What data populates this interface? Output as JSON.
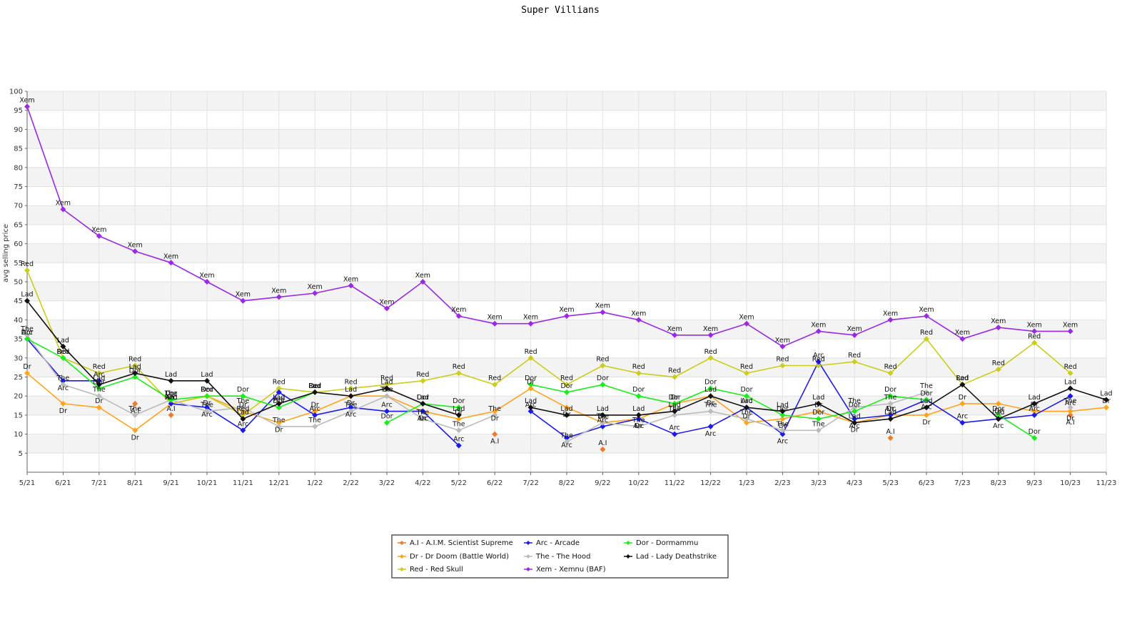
{
  "chart_data": {
    "type": "line",
    "title": "Super Villians",
    "xlabel": "",
    "ylabel": "avg selling price",
    "ylim": [
      0,
      100
    ],
    "yticks": [
      5,
      10,
      15,
      20,
      25,
      30,
      35,
      40,
      45,
      50,
      55,
      60,
      65,
      70,
      75,
      80,
      85,
      90,
      95,
      100
    ],
    "grid": true,
    "legend_position": "bottom-center",
    "x": [
      "5/21",
      "6/21",
      "7/21",
      "8/21",
      "9/21",
      "10/21",
      "11/21",
      "12/21",
      "1/22",
      "2/22",
      "3/22",
      "4/22",
      "5/22",
      "6/22",
      "7/22",
      "8/22",
      "9/22",
      "10/22",
      "11/22",
      "12/22",
      "1/23",
      "2/23",
      "3/23",
      "4/23",
      "5/23",
      "6/23",
      "7/23",
      "8/23",
      "9/23",
      "10/23",
      "11/23"
    ],
    "series": [
      {
        "name": "A.I - A.I.M. Scientist Supreme",
        "short": "A.I",
        "color": "#f07a28",
        "values": [
          null,
          null,
          null,
          18,
          15,
          null,
          null,
          null,
          null,
          null,
          null,
          null,
          null,
          10,
          null,
          null,
          6,
          null,
          null,
          null,
          null,
          null,
          null,
          null,
          9,
          null,
          null,
          null,
          null,
          15,
          null
        ],
        "connect": false
      },
      {
        "name": "Dr  - Dr Doom (Battle World)",
        "short": "Dr",
        "color": "#ffa31a",
        "values": [
          26,
          18,
          17,
          11,
          18,
          20,
          16,
          13,
          16,
          20,
          20,
          16,
          14,
          16,
          22,
          17,
          13,
          14,
          18,
          20,
          13,
          14,
          16,
          13,
          15,
          15,
          18,
          18,
          16,
          16,
          17
        ],
        "connect": true
      },
      {
        "name": "Red - Red Skull",
        "short": "Red",
        "color": "#cccc1a",
        "values": [
          53,
          30,
          26,
          28,
          18,
          20,
          15,
          22,
          21,
          22,
          23,
          24,
          26,
          23,
          30,
          23,
          28,
          26,
          25,
          30,
          26,
          28,
          28,
          29,
          26,
          35,
          23,
          27,
          34,
          26,
          null
        ],
        "connect": true
      },
      {
        "name": "Arc - Arcade",
        "short": "Arc",
        "color": "#1a1aee",
        "values": [
          35,
          24,
          24,
          null,
          18,
          17,
          11,
          21,
          15,
          17,
          16,
          16,
          7,
          null,
          16,
          9,
          12,
          14,
          10,
          12,
          17,
          10,
          29,
          14,
          15,
          19,
          13,
          14,
          15,
          20,
          null
        ],
        "connect": true
      },
      {
        "name": "The - The Hood",
        "short": "The",
        "color": "#bbbbbb",
        "values": [
          36,
          23,
          20,
          15,
          19,
          16,
          17,
          12,
          12,
          16,
          20,
          14,
          11,
          15,
          null,
          8,
          13,
          12,
          15,
          16,
          14,
          11,
          11,
          17,
          18,
          21,
          null,
          null,
          null,
          17,
          null
        ],
        "connect": true
      },
      {
        "name": "Xem - Xemnu (BAF)",
        "short": "Xem",
        "color": "#9a28e6",
        "values": [
          96,
          69,
          62,
          58,
          55,
          50,
          45,
          46,
          47,
          49,
          43,
          50,
          41,
          39,
          39,
          41,
          42,
          40,
          36,
          36,
          39,
          33,
          37,
          36,
          40,
          41,
          35,
          38,
          37,
          37,
          null
        ],
        "connect": true
      },
      {
        "name": "Dor - Dormammu",
        "short": "Dor",
        "color": "#1aee1a",
        "values": [
          35,
          30,
          22,
          25,
          19,
          20,
          20,
          17,
          21,
          null,
          13,
          18,
          17,
          null,
          23,
          21,
          23,
          20,
          18,
          22,
          20,
          15,
          14,
          16,
          20,
          19,
          null,
          15,
          9,
          null,
          null
        ],
        "connect": true
      },
      {
        "name": "Lad - Lady Deathstrike",
        "short": "Lad",
        "color": "#111111",
        "values": [
          45,
          33,
          23,
          26,
          24,
          24,
          14,
          18,
          21,
          20,
          22,
          18,
          15,
          null,
          17,
          15,
          15,
          15,
          16,
          20,
          17,
          16,
          18,
          13,
          14,
          17,
          23,
          14,
          18,
          22,
          19
        ],
        "connect": true
      }
    ]
  }
}
